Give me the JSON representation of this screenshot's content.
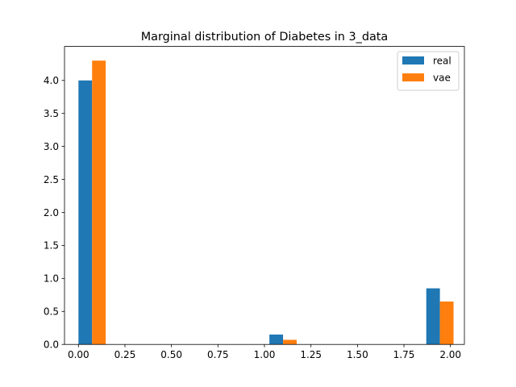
{
  "chart_data": {
    "type": "bar",
    "title": "Marginal distribution of Diabetes in 3_data",
    "xlabel": "",
    "ylabel": "",
    "xlim": [
      -0.075,
      2.075
    ],
    "ylim": [
      0,
      4.515
    ],
    "x_ticks": [
      "0.00",
      "0.25",
      "0.50",
      "0.75",
      "1.00",
      "1.25",
      "1.50",
      "1.75",
      "2.00"
    ],
    "x_tick_values": [
      0,
      0.25,
      0.5,
      0.75,
      1.0,
      1.25,
      1.5,
      1.75,
      2.0
    ],
    "y_ticks": [
      "0.0",
      "0.5",
      "1.0",
      "1.5",
      "2.0",
      "2.5",
      "3.0",
      "3.5",
      "4.0"
    ],
    "y_tick_values": [
      0,
      0.5,
      1.0,
      1.5,
      2.0,
      2.5,
      3.0,
      3.5,
      4.0
    ],
    "bar_width": 0.0733,
    "series": [
      {
        "name": "real",
        "color": "#1f77b4",
        "bars": [
          {
            "x": 0.0367,
            "y": 4.0
          },
          {
            "x": 1.0633,
            "y": 0.15
          },
          {
            "x": 1.9067,
            "y": 0.85
          }
        ]
      },
      {
        "name": "vae",
        "color": "#ff7f0e",
        "bars": [
          {
            "x": 0.11,
            "y": 4.3
          },
          {
            "x": 1.1367,
            "y": 0.07
          },
          {
            "x": 1.98,
            "y": 0.65
          }
        ]
      }
    ],
    "grid": false,
    "legend_position": "top-right"
  }
}
